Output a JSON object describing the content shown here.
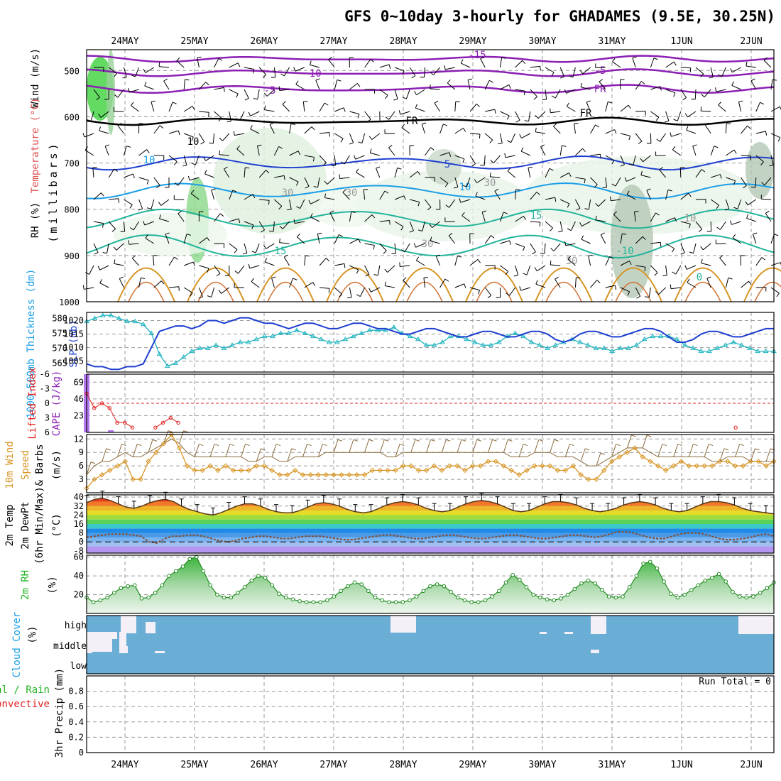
{
  "title": "GFS 0~10day 3-hourly for GHADAMES (9.5E, 30.25N)",
  "dates": [
    "24MAY",
    "25MAY",
    "26MAY",
    "27MAY",
    "28MAY",
    "29MAY",
    "30MAY",
    "31MAY",
    "1JUN",
    "2JUN"
  ],
  "colors": {
    "purple": "#8c1fb4",
    "blue": "#1f3fd0",
    "lightblue": "#1a9ee8",
    "teal": "#22b49a",
    "orange": "#d89422",
    "red": "#e02020",
    "cyan": "#22b4c0",
    "green": "#22b422",
    "brown": "#8a6a3a",
    "cloud": "#6aaed6"
  },
  "panels": {
    "upper": {
      "label_wind": "Wind (m/s)",
      "label_temp": "Temperature (°C)",
      "label_rh": "RH (%)",
      "label_mb": "(millibars)",
      "yticks": [
        "500",
        "600",
        "700",
        "800",
        "900",
        "1000"
      ],
      "contours": [
        "-15",
        "-10",
        "-5",
        "FR",
        "10",
        "5",
        "10",
        "15",
        "15",
        "-10",
        "-5",
        "FR",
        "FR",
        "10",
        "30",
        "30",
        "30",
        "30",
        "30",
        "10",
        "0"
      ]
    },
    "slp": {
      "label_thk": "1000-500mb Thickness (dm)",
      "label_slp": "SLP (mb)",
      "yticks_left": [
        "580",
        "575",
        "570",
        "565"
      ],
      "yticks_right": [
        "1020",
        "1015",
        "1010",
        "1005"
      ]
    },
    "cape": {
      "label_li": "Lifted Index",
      "label_cape": "CAPE (J/kg)",
      "yticks_left": [
        "-6",
        "-3",
        "0",
        "3",
        "6"
      ],
      "yticks_right": [
        "69",
        "46",
        "23"
      ]
    },
    "wind10": {
      "label_a": "10m Wind",
      "label_b": "Speed",
      "label_c": "& Barbs",
      "label_unit": "(m/s)",
      "yticks": [
        "12",
        "9",
        "6",
        "3"
      ]
    },
    "temp2m": {
      "label_a": "2m Temp",
      "label_b": "2m DewPt",
      "label_c": "(6hr Min/Max)",
      "label_unit": "(°C)",
      "yticks": [
        "40",
        "32",
        "24",
        "16",
        "8",
        "0",
        "-8"
      ]
    },
    "rh2m": {
      "label": "2m RH",
      "label_unit": "(%)",
      "yticks": [
        "60",
        "40",
        "20"
      ]
    },
    "cloud": {
      "label": "Cloud Cover",
      "label_unit": "(%)",
      "yticks": [
        "high",
        "middle",
        "low"
      ]
    },
    "precip": {
      "label_a": "Total / Rain",
      "label_b": "Convective",
      "label_unit": "3hr Precip (mm)",
      "yticks": [
        "0.8",
        "0.6",
        "0.4",
        "0.2",
        "0"
      ],
      "run_total": "Run Total = 0"
    }
  },
  "chart_data": [
    {
      "type": "line",
      "title": "1000-500mb Thickness (dm) / SLP (mb)",
      "series": [
        {
          "name": "Thickness",
          "values": [
            579,
            580,
            581,
            581,
            580,
            579,
            579,
            578,
            575,
            568,
            564,
            565,
            567,
            569,
            570,
            570,
            571,
            570,
            571,
            572,
            572,
            573,
            574,
            574,
            575,
            575,
            576,
            575,
            574,
            573,
            572,
            572,
            573,
            574,
            575,
            576,
            576,
            576,
            577,
            575,
            574,
            573,
            571,
            571,
            572,
            574,
            574,
            573,
            572,
            571,
            571,
            572,
            574,
            575,
            574,
            572,
            571,
            570,
            571,
            572,
            573,
            572,
            571,
            570,
            570,
            569,
            570,
            570,
            571,
            573,
            574,
            574,
            574,
            573,
            571,
            570,
            569,
            569,
            570,
            571,
            572,
            571,
            570,
            569,
            569,
            569
          ]
        },
        {
          "name": "SLP",
          "values": [
            1004,
            1003,
            1003,
            1002,
            1002,
            1003,
            1003,
            1004,
            1010,
            1016,
            1017,
            1018,
            1018,
            1017,
            1018,
            1020,
            1020,
            1019,
            1020,
            1021,
            1021,
            1020,
            1019,
            1019,
            1018,
            1017,
            1018,
            1019,
            1019,
            1018,
            1017,
            1017,
            1018,
            1019,
            1019,
            1018,
            1017,
            1017,
            1016,
            1015,
            1015,
            1016,
            1017,
            1017,
            1016,
            1015,
            1014,
            1014,
            1015,
            1016,
            1016,
            1015,
            1014,
            1014,
            1015,
            1016,
            1016,
            1015,
            1013,
            1012,
            1013,
            1015,
            1016,
            1016,
            1015,
            1014,
            1014,
            1015,
            1016,
            1017,
            1017,
            1016,
            1014,
            1012,
            1012,
            1013,
            1015,
            1016,
            1016,
            1015,
            1014,
            1014,
            1015,
            1016,
            1017,
            1017
          ]
        }
      ],
      "ylim_left": [
        562,
        582
      ],
      "ylim_right": [
        1001,
        1023
      ]
    },
    {
      "type": "line",
      "title": "Lifted Index / CAPE (J/kg)",
      "series": [
        {
          "name": "Lifted Index",
          "values": [
            -2,
            1,
            0,
            1,
            4,
            4,
            5,
            6,
            6,
            5,
            4,
            3,
            4,
            6,
            7,
            7,
            7,
            7,
            7,
            7,
            7,
            7,
            7,
            7,
            7,
            7,
            7,
            7,
            7,
            7,
            7,
            7,
            7,
            7,
            7,
            7,
            7,
            7,
            7,
            7,
            7,
            7,
            7,
            7,
            7,
            7,
            7,
            6,
            6,
            6,
            7,
            7,
            7,
            7,
            7,
            6,
            6,
            6,
            7,
            7,
            7,
            7,
            7,
            7,
            7,
            7,
            7,
            7,
            7,
            6,
            6,
            6,
            7,
            7,
            7,
            7,
            7,
            7,
            7,
            7,
            7,
            7,
            7,
            7,
            7,
            5,
            6,
            6,
            7,
            7,
            7
          ]
        },
        {
          "name": "CAPE",
          "values": [
            80,
            0,
            0,
            3,
            0,
            0,
            0,
            0,
            0,
            0,
            0,
            0,
            0,
            0,
            0,
            0,
            0,
            0,
            0,
            0,
            0,
            0,
            0,
            0,
            0,
            0,
            0,
            0,
            0,
            0,
            0,
            0,
            0,
            0,
            0,
            0,
            0,
            0,
            0,
            0,
            0,
            0,
            0,
            0,
            0,
            0,
            0,
            0,
            0,
            0,
            0,
            0,
            0,
            0,
            0,
            0,
            0,
            0,
            0,
            0,
            0,
            0,
            0,
            0,
            0,
            0,
            0,
            0,
            0,
            0,
            0,
            0,
            0,
            0,
            0,
            0,
            0,
            0,
            0,
            0,
            0,
            0,
            0,
            0,
            0,
            0
          ]
        }
      ],
      "ylim_li": [
        6,
        -6
      ],
      "ylim_cape": [
        0,
        80
      ]
    },
    {
      "type": "line",
      "title": "10m Wind Speed & Barbs (m/s)",
      "series": [
        {
          "name": "Speed",
          "values": [
            1,
            3,
            4,
            5,
            6,
            7,
            3,
            3,
            7,
            9,
            11,
            13,
            10,
            6,
            5,
            5,
            6,
            5,
            6,
            5,
            5,
            5,
            6,
            6,
            5,
            4,
            4,
            5,
            4,
            4,
            4,
            4,
            4,
            4,
            4,
            4,
            4,
            5,
            5,
            5,
            5,
            6,
            6,
            5,
            5,
            6,
            5,
            6,
            6,
            5,
            6,
            6,
            7,
            7,
            6,
            5,
            4,
            5,
            6,
            6,
            6,
            5,
            5,
            6,
            4,
            3,
            3,
            5,
            7,
            8,
            9,
            10,
            8,
            7,
            6,
            5,
            6,
            7,
            6,
            6,
            6,
            6,
            7,
            7,
            6,
            6,
            7,
            7,
            6,
            7
          ]
        },
        {
          "name": "Gust",
          "values": [
            4,
            6,
            7,
            7,
            8,
            9,
            8,
            8,
            9,
            10,
            11,
            12,
            11,
            9,
            8,
            8,
            8,
            8,
            8,
            8,
            8,
            7,
            7,
            8,
            8,
            7,
            7,
            8,
            8,
            8,
            8,
            9,
            9,
            9,
            9,
            9,
            9,
            9,
            9,
            8,
            8,
            9,
            9,
            9,
            9,
            9,
            9,
            9,
            9,
            9,
            9,
            9,
            9,
            9,
            9,
            8,
            8,
            8,
            9,
            9,
            9,
            8,
            8,
            8,
            7,
            6,
            6,
            7,
            8,
            9,
            10,
            10,
            10,
            9,
            8,
            8,
            8,
            8,
            8,
            8,
            8,
            7,
            7,
            8,
            8,
            8,
            7,
            7,
            7,
            7
          ]
        }
      ],
      "ylim": [
        0,
        13
      ]
    },
    {
      "type": "line",
      "title": "2m Temp / 2m DewPt (°C)",
      "series": [
        {
          "name": "Temp",
          "values": [
            35,
            38,
            39,
            37,
            34,
            31,
            30,
            32,
            35,
            37,
            38,
            36,
            32,
            29,
            27,
            25,
            24,
            26,
            29,
            32,
            34,
            34,
            32,
            29,
            27,
            26,
            26,
            28,
            31,
            34,
            35,
            34,
            32,
            29,
            27,
            26,
            27,
            30,
            33,
            35,
            36,
            35,
            33,
            30,
            28,
            27,
            28,
            31,
            34,
            36,
            37,
            36,
            34,
            31,
            28,
            27,
            28,
            31,
            34,
            36,
            36,
            35,
            33,
            30,
            28,
            27,
            28,
            30,
            33,
            35,
            36,
            35,
            33,
            30,
            28,
            27,
            28,
            31,
            34,
            36,
            36,
            35,
            33,
            30,
            28,
            27,
            26,
            25
          ]
        },
        {
          "name": "DewPt",
          "values": [
            4,
            5,
            6,
            7,
            7,
            7,
            6,
            5,
            0,
            -1,
            3,
            5,
            5,
            6,
            6,
            5,
            3,
            1,
            0,
            1,
            3,
            4,
            5,
            5,
            4,
            3,
            3,
            4,
            5,
            5,
            5,
            4,
            3,
            2,
            2,
            3,
            4,
            5,
            6,
            6,
            5,
            4,
            3,
            3,
            4,
            5,
            6,
            6,
            5,
            4,
            3,
            3,
            4,
            5,
            6,
            6,
            5,
            4,
            3,
            3,
            4,
            5,
            6,
            6,
            5,
            4,
            5,
            7,
            9,
            9,
            8,
            6,
            4,
            3,
            3,
            5,
            7,
            8,
            8,
            7,
            5,
            3,
            2,
            2,
            3,
            4,
            6,
            7,
            5
          ]
        }
      ],
      "ylim": [
        -10,
        42
      ]
    },
    {
      "type": "area",
      "title": "2m RH (%)",
      "series": [
        {
          "name": "RH",
          "values": [
            17,
            12,
            14,
            17,
            22,
            27,
            29,
            30,
            16,
            17,
            22,
            30,
            40,
            45,
            50,
            58,
            60,
            45,
            30,
            20,
            17,
            17,
            22,
            28,
            35,
            40,
            38,
            30,
            21,
            17,
            15,
            13,
            12,
            12,
            12,
            14,
            18,
            24,
            29,
            33,
            31,
            24,
            17,
            14,
            12,
            12,
            12,
            14,
            18,
            24,
            29,
            31,
            29,
            23,
            17,
            14,
            12,
            12,
            14,
            18,
            24,
            33,
            41,
            36,
            28,
            20,
            17,
            15,
            14,
            16,
            20,
            26,
            32,
            35,
            32,
            25,
            18,
            17,
            18,
            28,
            40,
            53,
            55,
            48,
            34,
            21,
            17,
            20,
            25,
            30,
            35,
            38,
            42,
            34,
            23,
            18,
            17,
            18,
            22,
            27,
            33
          ]
        }
      ],
      "ylim": [
        0,
        62
      ]
    },
    {
      "type": "table",
      "title": "Cloud Cover (%)",
      "categories": [
        "high",
        "middle",
        "low"
      ],
      "notes": "Mostly full cloud (blue) at all levels; clear gaps near 24MAY, 28MAY, 31MAY and 2JUN"
    },
    {
      "type": "bar",
      "title": "3hr Precip (mm)",
      "values": [
        0,
        0,
        0,
        0,
        0,
        0,
        0,
        0,
        0,
        0
      ],
      "ylim": [
        0,
        1
      ]
    }
  ]
}
